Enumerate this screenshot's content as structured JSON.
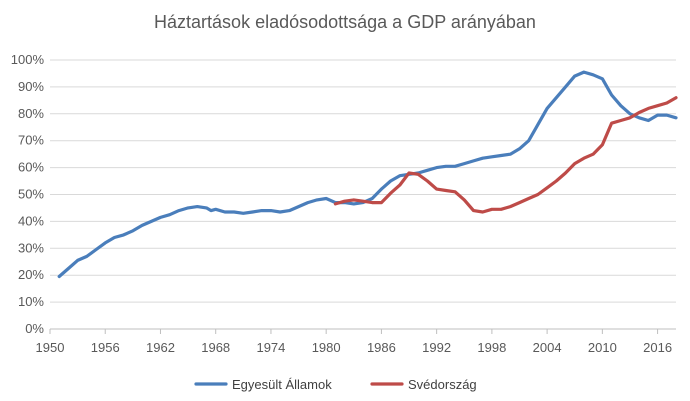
{
  "chart_data": {
    "type": "line",
    "title": "Háztartások eladósodottsága a GDP arányában",
    "xlabel": "",
    "ylabel": "",
    "xlim": [
      1950,
      2018
    ],
    "ylim": [
      0,
      100
    ],
    "x_ticks": [
      1950,
      1956,
      1962,
      1968,
      1974,
      1980,
      1986,
      1992,
      1998,
      2004,
      2010,
      2016
    ],
    "x_tick_labels": [
      "1950",
      "1956",
      "1962",
      "1968",
      "1974",
      "1980",
      "1986",
      "1992",
      "1998",
      "2004",
      "2010",
      "2016"
    ],
    "y_ticks": [
      0,
      10,
      20,
      30,
      40,
      50,
      60,
      70,
      80,
      90,
      100
    ],
    "y_tick_labels": [
      "0%",
      "10%",
      "20%",
      "30%",
      "40%",
      "50%",
      "60%",
      "70%",
      "80%",
      "90%",
      "100%"
    ],
    "grid": "horizontal",
    "legend_position": "bottom",
    "series": [
      {
        "name": "Egyesült Államok",
        "color": "#4a7ebb",
        "x": [
          1951,
          1952,
          1953,
          1954,
          1955,
          1956,
          1957,
          1958,
          1959,
          1960,
          1961,
          1962,
          1963,
          1964,
          1965,
          1966,
          1967,
          1967.5,
          1968,
          1969,
          1970,
          1971,
          1972,
          1973,
          1974,
          1975,
          1976,
          1977,
          1978,
          1979,
          1980,
          1981,
          1982,
          1983,
          1984,
          1985,
          1986,
          1987,
          1988,
          1989,
          1990,
          1991,
          1992,
          1993,
          1994,
          1995,
          1996,
          1997,
          1998,
          1999,
          2000,
          2001,
          2002,
          2003,
          2004,
          2005,
          2006,
          2007,
          2008,
          2009,
          2010,
          2011,
          2012,
          2013,
          2014,
          2015,
          2016,
          2017,
          2018
        ],
        "values": [
          19.5,
          22.5,
          25.5,
          27,
          29.5,
          32,
          34,
          35,
          36.5,
          38.5,
          40,
          41.5,
          42.5,
          44,
          45,
          45.5,
          45,
          44,
          44.5,
          43.5,
          43.5,
          43,
          43.5,
          44,
          44,
          43.5,
          44,
          45.5,
          47,
          48,
          48.5,
          47,
          47,
          46.5,
          47,
          48.5,
          52,
          55,
          57,
          57.5,
          58,
          59,
          60,
          60.5,
          60.5,
          61.5,
          62.5,
          63.5,
          64,
          64.5,
          65,
          67,
          70,
          76,
          82,
          86,
          90,
          94,
          95.5,
          94.5,
          93,
          87,
          83,
          80,
          78.5,
          77.5,
          79.5,
          79.5,
          78.5
        ]
      },
      {
        "name": "Svédország",
        "color": "#be4b48",
        "x": [
          1981,
          1982,
          1983,
          1984,
          1985,
          1986,
          1987,
          1988,
          1989,
          1990,
          1991,
          1992,
          1993,
          1994,
          1995,
          1996,
          1997,
          1998,
          1999,
          2000,
          2001,
          2002,
          2003,
          2004,
          2005,
          2006,
          2007,
          2008,
          2009,
          2010,
          2011,
          2012,
          2013,
          2014,
          2015,
          2016,
          2017,
          2018
        ],
        "values": [
          46.5,
          47.5,
          48,
          47.5,
          47,
          47,
          50.5,
          53.5,
          58,
          57.5,
          55,
          52,
          51.5,
          51,
          48,
          44,
          43.5,
          44.5,
          44.5,
          45.5,
          47,
          48.5,
          50,
          52.5,
          55,
          58,
          61.5,
          63.5,
          65,
          68.5,
          76.5,
          77.5,
          78.5,
          80.5,
          82,
          83,
          84,
          86
        ]
      }
    ]
  }
}
